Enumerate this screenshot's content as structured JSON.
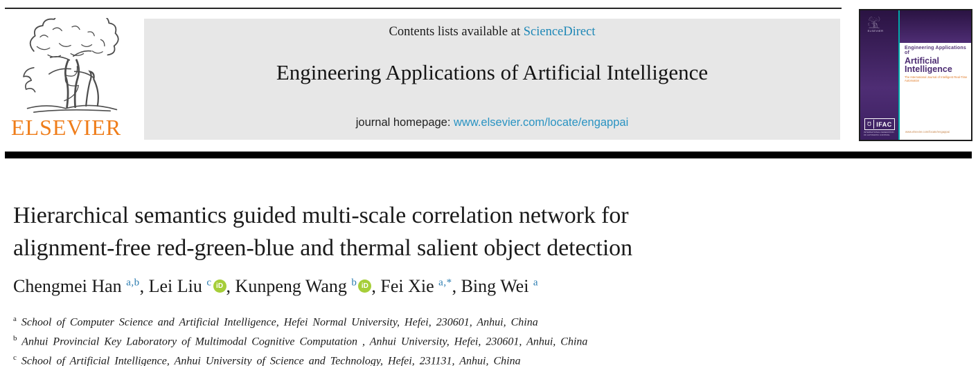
{
  "header": {
    "elsevier_logo_text": "ELSEVIER",
    "contents_line": {
      "prefix": "Contents lists available at ",
      "link": "ScienceDirect"
    },
    "journal_title": "Engineering Applications of Artificial Intelligence",
    "homepage_line": {
      "prefix": "journal homepage: ",
      "url": "www.elsevier.com/locate/engappai"
    }
  },
  "cover": {
    "title_line1": "Engineering Applications of",
    "title_line2": "Artificial Intelligence",
    "tagline": "The International Journal of Intelligent Real-Time Automation",
    "ifac_symbol": "Ʊ",
    "ifac_label": "IFAC",
    "ifac_sub": "INTERNATIONAL FEDERATION OF AUTOMATIC CONTROL",
    "footer_url": "www.elsevier.com/locate/engappai"
  },
  "article": {
    "title_line1": "Hierarchical semantics guided multi-scale correlation network for",
    "title_line2": "alignment-free red-green-blue and thermal salient object detection",
    "authors": [
      {
        "name": "Chengmei Han",
        "sup": "a,b",
        "orcid": false
      },
      {
        "name": "Lei Liu",
        "sup": "c",
        "orcid": true
      },
      {
        "name": "Kunpeng Wang",
        "sup": "b",
        "orcid": true
      },
      {
        "name": "Fei Xie",
        "sup": "a,*",
        "orcid": false
      },
      {
        "name": "Bing Wei",
        "sup": "a",
        "orcid": false
      }
    ],
    "affiliations": [
      {
        "sup": "a",
        "text": "School of Computer Science and Artificial Intelligence, Hefei Normal University, Hefei, 230601, Anhui, China"
      },
      {
        "sup": "b",
        "text": "Anhui Provincial Key Laboratory of Multimodal Cognitive Computation , Anhui University, Hefei, 230601, Anhui, China"
      },
      {
        "sup": "c",
        "text": "School of Artificial Intelligence, Anhui University of Science and Technology, Hefei, 231131, Anhui, China"
      }
    ]
  },
  "colors": {
    "elsevier_orange": "#ef7d1a",
    "banner_bg": "#e7e7e7",
    "sciencedirect_link": "#1d87b6",
    "homepage_link": "#2a93c2",
    "sup_blue": "#2b7cb0",
    "orcid_green": "#a6ce39",
    "purple": "#3a1d5c",
    "teal": "#00a9a9",
    "cover_orange": "#e07b28"
  }
}
